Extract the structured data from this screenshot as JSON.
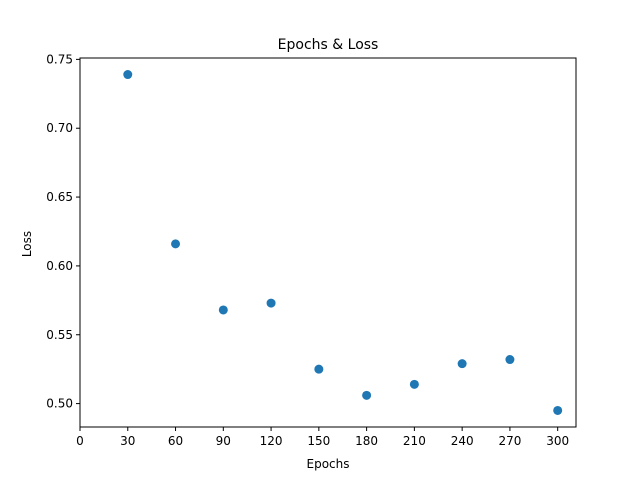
{
  "chart_data": {
    "type": "scatter",
    "title": "Epochs & Loss",
    "xlabel": "Epochs",
    "ylabel": "Loss",
    "x": [
      30,
      60,
      90,
      120,
      150,
      180,
      210,
      240,
      270,
      300
    ],
    "y": [
      0.739,
      0.616,
      0.568,
      0.573,
      0.525,
      0.506,
      0.514,
      0.529,
      0.532,
      0.495
    ],
    "xlim": [
      0,
      311.5
    ],
    "ylim": [
      0.483,
      0.751
    ],
    "xticks": [
      0,
      30,
      60,
      90,
      120,
      150,
      180,
      210,
      240,
      270,
      300
    ],
    "yticks": [
      0.5,
      0.55,
      0.6,
      0.65,
      0.7,
      0.75
    ],
    "ytick_labels": [
      "0.50",
      "0.55",
      "0.60",
      "0.65",
      "0.70",
      "0.75"
    ],
    "marker_color": "#1f77b4",
    "grid": false,
    "legend": "none"
  }
}
